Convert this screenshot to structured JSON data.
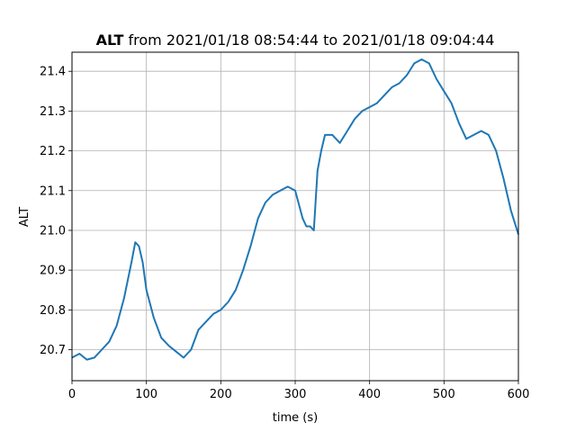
{
  "chart_data": {
    "type": "line",
    "title_bold": "ALT",
    "title_rest": " from 2021/01/18 08:54:44 to 2021/01/18 09:04:44",
    "xlabel": "time (s)",
    "ylabel": "ALT",
    "xlim": [
      0,
      600
    ],
    "ylim": [
      20.622,
      21.448
    ],
    "xticks": [
      0,
      100,
      200,
      300,
      400,
      500,
      600
    ],
    "yticks": [
      20.7,
      20.8,
      20.9,
      21.0,
      21.1,
      21.2,
      21.3,
      21.4
    ],
    "grid": true,
    "line_color": "#1f77b4",
    "series": [
      {
        "x": [
          0,
          10,
          20,
          30,
          40,
          50,
          60,
          70,
          80,
          85,
          90,
          95,
          100,
          110,
          120,
          130,
          140,
          150,
          155,
          160,
          170,
          180,
          190,
          200,
          210,
          220,
          230,
          240,
          250,
          260,
          270,
          280,
          290,
          300,
          310,
          315,
          320,
          325,
          330,
          335,
          340,
          350,
          360,
          370,
          380,
          390,
          400,
          410,
          420,
          430,
          440,
          450,
          460,
          470,
          480,
          490,
          500,
          510,
          520,
          530,
          540,
          550,
          560,
          570,
          580,
          590,
          600
        ],
        "y": [
          20.68,
          20.69,
          20.675,
          20.68,
          20.7,
          20.72,
          20.76,
          20.83,
          20.92,
          20.97,
          20.96,
          20.92,
          20.85,
          20.78,
          20.73,
          20.71,
          20.695,
          20.68,
          20.69,
          20.7,
          20.75,
          20.77,
          20.79,
          20.8,
          20.82,
          20.85,
          20.9,
          20.96,
          21.03,
          21.07,
          21.09,
          21.1,
          21.11,
          21.1,
          21.03,
          21.01,
          21.01,
          21.0,
          21.15,
          21.2,
          21.24,
          21.24,
          21.22,
          21.25,
          21.28,
          21.3,
          21.31,
          21.32,
          21.34,
          21.36,
          21.37,
          21.39,
          21.42,
          21.43,
          21.42,
          21.38,
          21.35,
          21.32,
          21.27,
          21.23,
          21.24,
          21.25,
          21.24,
          21.2,
          21.13,
          21.05,
          20.99
        ]
      }
    ]
  }
}
